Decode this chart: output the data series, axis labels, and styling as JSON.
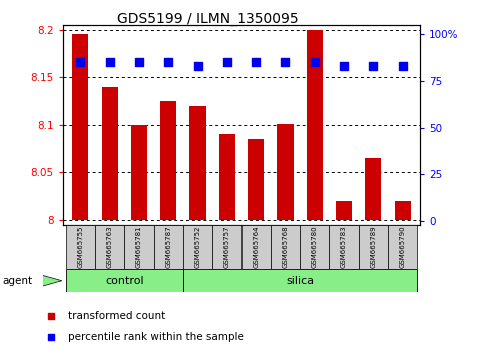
{
  "title": "GDS5199 / ILMN_1350095",
  "samples": [
    "GSM665755",
    "GSM665763",
    "GSM665781",
    "GSM665787",
    "GSM665752",
    "GSM665757",
    "GSM665764",
    "GSM665768",
    "GSM665780",
    "GSM665783",
    "GSM665789",
    "GSM665790"
  ],
  "red_values": [
    8.195,
    8.14,
    8.1,
    8.125,
    8.12,
    8.09,
    8.085,
    8.101,
    8.2,
    8.02,
    8.065,
    8.02
  ],
  "blue_values": [
    85,
    85,
    85,
    85,
    83,
    85,
    85,
    85,
    85,
    83,
    83,
    83
  ],
  "ylim_left": [
    7.995,
    8.205
  ],
  "ylim_right": [
    -2,
    105
  ],
  "yticks_left": [
    8.0,
    8.05,
    8.1,
    8.15,
    8.2
  ],
  "ytick_labels_left": [
    "8",
    "8.05",
    "8.1",
    "8.15",
    "8.2"
  ],
  "yticks_right": [
    0,
    25,
    50,
    75,
    100
  ],
  "ytick_labels_right": [
    "0",
    "25",
    "50",
    "75",
    "100%"
  ],
  "groups": [
    {
      "label": "control",
      "start": 0,
      "end": 4
    },
    {
      "label": "silica",
      "start": 4,
      "end": 12
    }
  ],
  "bar_color": "#CC0000",
  "dot_color": "#0000EE",
  "legend_items": [
    {
      "color": "#CC0000",
      "label": "transformed count"
    },
    {
      "color": "#0000EE",
      "label": "percentile rank within the sample"
    }
  ],
  "bar_width": 0.55,
  "dot_size": 28,
  "dot_marker": "s",
  "base_value": 8.0
}
